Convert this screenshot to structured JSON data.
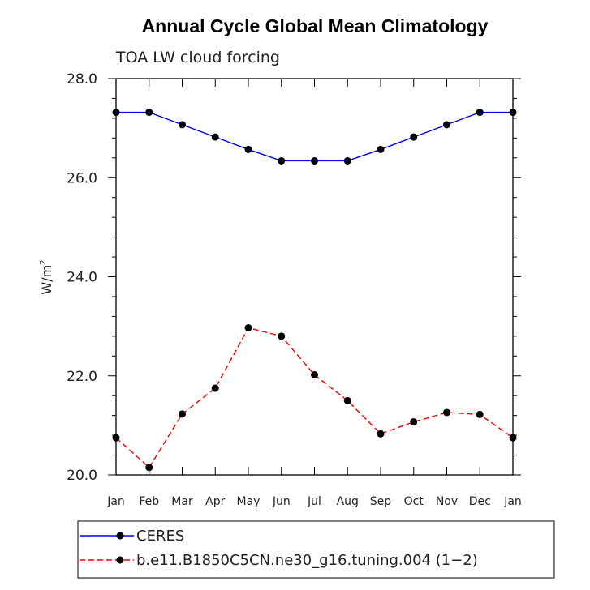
{
  "chart_data": {
    "type": "line",
    "title": "Annual Cycle Global Mean Climatology",
    "subtitle": "TOA LW cloud forcing",
    "ylabel": "W/m",
    "ylabel_superscript": "2",
    "xlabel": "",
    "categories": [
      "Jan",
      "Feb",
      "Mar",
      "Apr",
      "May",
      "Jun",
      "Jul",
      "Aug",
      "Sep",
      "Oct",
      "Nov",
      "Dec",
      "Jan"
    ],
    "ylim": [
      20.0,
      28.0
    ],
    "yticks": [
      "20.0",
      "22.0",
      "24.0",
      "26.0",
      "28.0"
    ],
    "series": [
      {
        "name": "CERES",
        "color": "#0000ee",
        "dash": "solid",
        "values": [
          27.32,
          27.32,
          27.07,
          26.82,
          26.57,
          26.34,
          26.34,
          26.34,
          26.57,
          26.82,
          27.07,
          27.32,
          27.32
        ]
      },
      {
        "name": "b.e11.B1850C5CN.ne30_g16.tuning.004 (1−2)",
        "color": "#ee0000",
        "dash": "dashed",
        "values": [
          20.75,
          20.15,
          21.23,
          21.75,
          22.97,
          22.8,
          22.02,
          21.5,
          20.83,
          21.07,
          21.26,
          21.22,
          20.75
        ]
      }
    ],
    "legend_position": "bottom-left"
  }
}
